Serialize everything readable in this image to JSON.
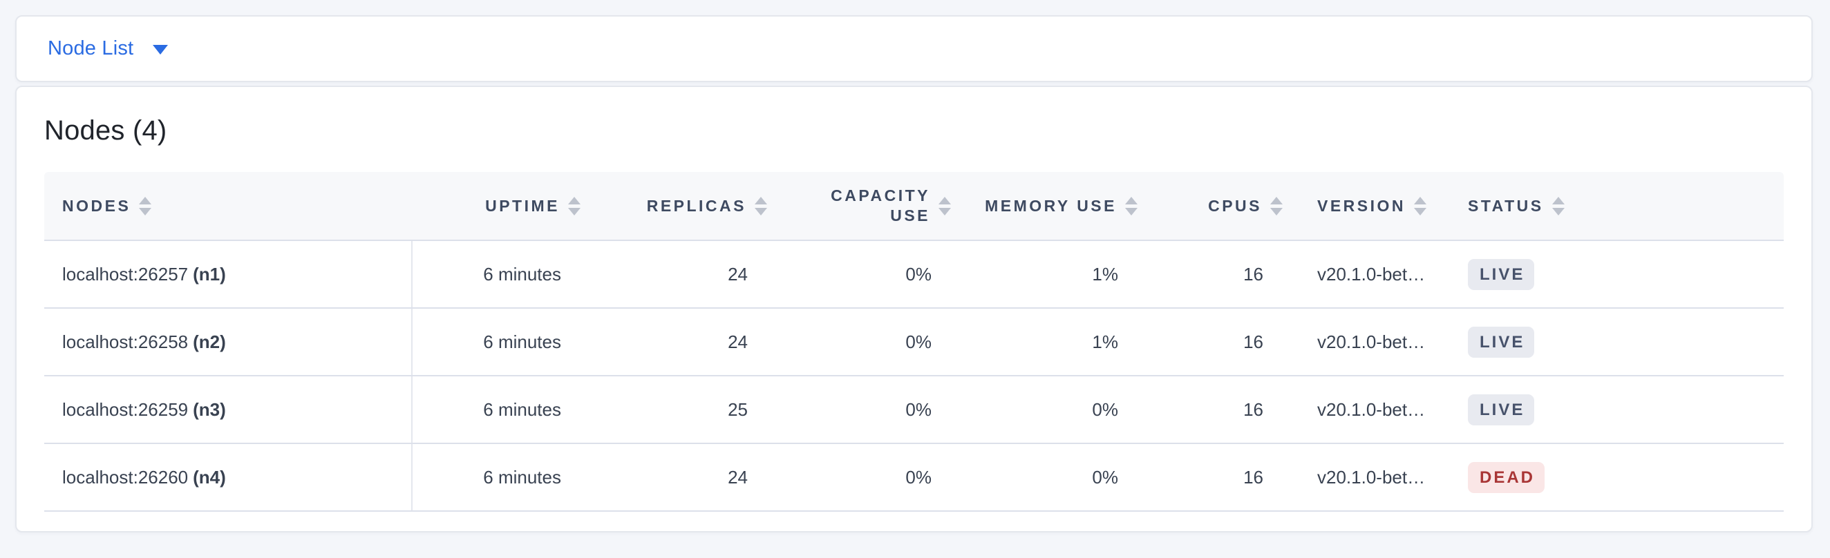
{
  "toolbar": {
    "dropdown_label": "Node List"
  },
  "panel": {
    "title": "Nodes (4)"
  },
  "table": {
    "columns": [
      {
        "key": "nodes",
        "label": "NODES",
        "align": "left",
        "sortable": true
      },
      {
        "key": "uptime",
        "label": "UPTIME",
        "align": "right",
        "sortable": true
      },
      {
        "key": "replicas",
        "label": "REPLICAS",
        "align": "right",
        "sortable": true
      },
      {
        "key": "capacity",
        "label": "CAPACITY USE",
        "align": "right",
        "sortable": true
      },
      {
        "key": "memory",
        "label": "MEMORY USE",
        "align": "right",
        "sortable": true
      },
      {
        "key": "cpus",
        "label": "CPUS",
        "align": "right",
        "sortable": true
      },
      {
        "key": "version",
        "label": "VERSION",
        "align": "left",
        "sortable": true
      },
      {
        "key": "status",
        "label": "STATUS",
        "align": "left",
        "sortable": true
      }
    ],
    "rows": [
      {
        "address": "localhost:26257",
        "node_id": "(n1)",
        "uptime": "6 minutes",
        "replicas": "24",
        "capacity": "0%",
        "memory": "1%",
        "cpus": "16",
        "version": "v20.1.0-bet…",
        "status": "LIVE"
      },
      {
        "address": "localhost:26258",
        "node_id": "(n2)",
        "uptime": "6 minutes",
        "replicas": "24",
        "capacity": "0%",
        "memory": "1%",
        "cpus": "16",
        "version": "v20.1.0-bet…",
        "status": "LIVE"
      },
      {
        "address": "localhost:26259",
        "node_id": "(n3)",
        "uptime": "6 minutes",
        "replicas": "25",
        "capacity": "0%",
        "memory": "0%",
        "cpus": "16",
        "version": "v20.1.0-bet…",
        "status": "LIVE"
      },
      {
        "address": "localhost:26260",
        "node_id": "(n4)",
        "uptime": "6 minutes",
        "replicas": "24",
        "capacity": "0%",
        "memory": "0%",
        "cpus": "16",
        "version": "v20.1.0-bet…",
        "status": "DEAD"
      }
    ]
  },
  "colors": {
    "accent_blue": "#2A6BE2",
    "live_badge_bg": "#E8EAF0",
    "live_badge_text": "#47526B",
    "dead_badge_bg": "#FAE6E6",
    "dead_badge_text": "#A93636"
  }
}
